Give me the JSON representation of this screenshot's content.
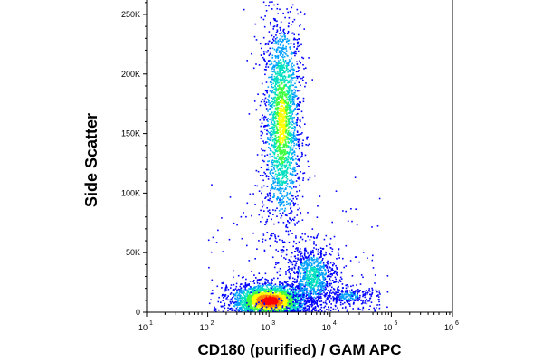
{
  "chart_data": {
    "type": "scatter",
    "subtype": "flow-cytometry-density-plot",
    "xlabel": "CD180 (purified) / GAM APC",
    "ylabel": "Side Scatter",
    "x_scale": "log",
    "xlim": [
      10,
      1000000
    ],
    "ylim": [
      0,
      262144
    ],
    "x_ticks": [
      {
        "value": 10,
        "label": "10",
        "exp": "1"
      },
      {
        "value": 100,
        "label": "10",
        "exp": "2"
      },
      {
        "value": 1000,
        "label": "10",
        "exp": "3"
      },
      {
        "value": 10000,
        "label": "10",
        "exp": "4"
      },
      {
        "value": 100000,
        "label": "10",
        "exp": "5"
      },
      {
        "value": 1000000,
        "label": "10",
        "exp": "6"
      }
    ],
    "y_ticks": [
      {
        "value": 0,
        "label": "0"
      },
      {
        "value": 50000,
        "label": "50K"
      },
      {
        "value": 100000,
        "label": "100K"
      },
      {
        "value": 150000,
        "label": "150K"
      },
      {
        "value": 200000,
        "label": "200K"
      },
      {
        "value": 250000,
        "label": "250K"
      }
    ],
    "populations": [
      {
        "center_x": 1600,
        "center_y": 160000,
        "spread_log_x": 0.14,
        "spread_y": 45000,
        "density": "high"
      },
      {
        "center_x": 1000,
        "center_y": 10000,
        "spread_log_x": 0.28,
        "spread_y": 7000,
        "density": "very high"
      },
      {
        "center_x": 5000,
        "center_y": 30000,
        "spread_log_x": 0.18,
        "spread_y": 14000,
        "density": "medium"
      },
      {
        "center_x": 20000,
        "center_y": 14000,
        "spread_log_x": 0.2,
        "spread_y": 4000,
        "density": "low"
      }
    ],
    "color_scale": [
      "#0000ff",
      "#00a0ff",
      "#00e0c0",
      "#40ff40",
      "#ffff00",
      "#ff8000",
      "#ff0000"
    ],
    "grid": false,
    "legend": "none"
  }
}
